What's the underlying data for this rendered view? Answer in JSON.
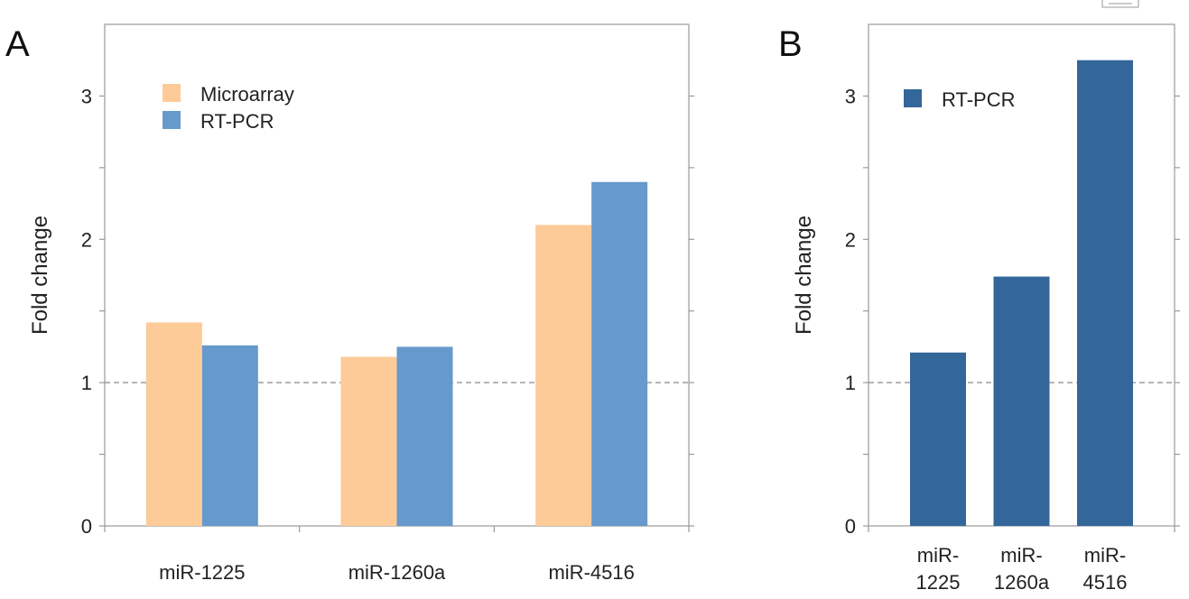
{
  "chart_data": [
    {
      "panel": "A",
      "type": "bar",
      "ylabel": "Fold change",
      "ylim": [
        0,
        3.5
      ],
      "yticks": [
        "0",
        "1",
        "2",
        "3"
      ],
      "categories": [
        "miR-1225",
        "miR-1260a",
        "miR-4516"
      ],
      "series": [
        {
          "name": "Microarray",
          "color": "#fdcb98",
          "values": [
            1.42,
            1.18,
            2.1
          ]
        },
        {
          "name": "RT-PCR",
          "color": "#6699cc",
          "values": [
            1.26,
            1.25,
            2.4
          ]
        }
      ],
      "reference_line": 1,
      "legend_position": "top-left"
    },
    {
      "panel": "B",
      "type": "bar",
      "ylabel": "Fold change",
      "ylim": [
        0,
        3.5
      ],
      "yticks": [
        "0",
        "1",
        "2",
        "3"
      ],
      "categories": [
        "miR-1225",
        "miR-1260a",
        "miR-4516"
      ],
      "category_lines": [
        [
          "miR-",
          "1225"
        ],
        [
          "miR-",
          "1260a"
        ],
        [
          "miR-",
          "4516"
        ]
      ],
      "series": [
        {
          "name": "RT-PCR",
          "color": "#336699",
          "values": [
            1.21,
            1.74,
            3.25
          ]
        }
      ],
      "reference_line": 1,
      "legend_position": "top-left"
    }
  ]
}
